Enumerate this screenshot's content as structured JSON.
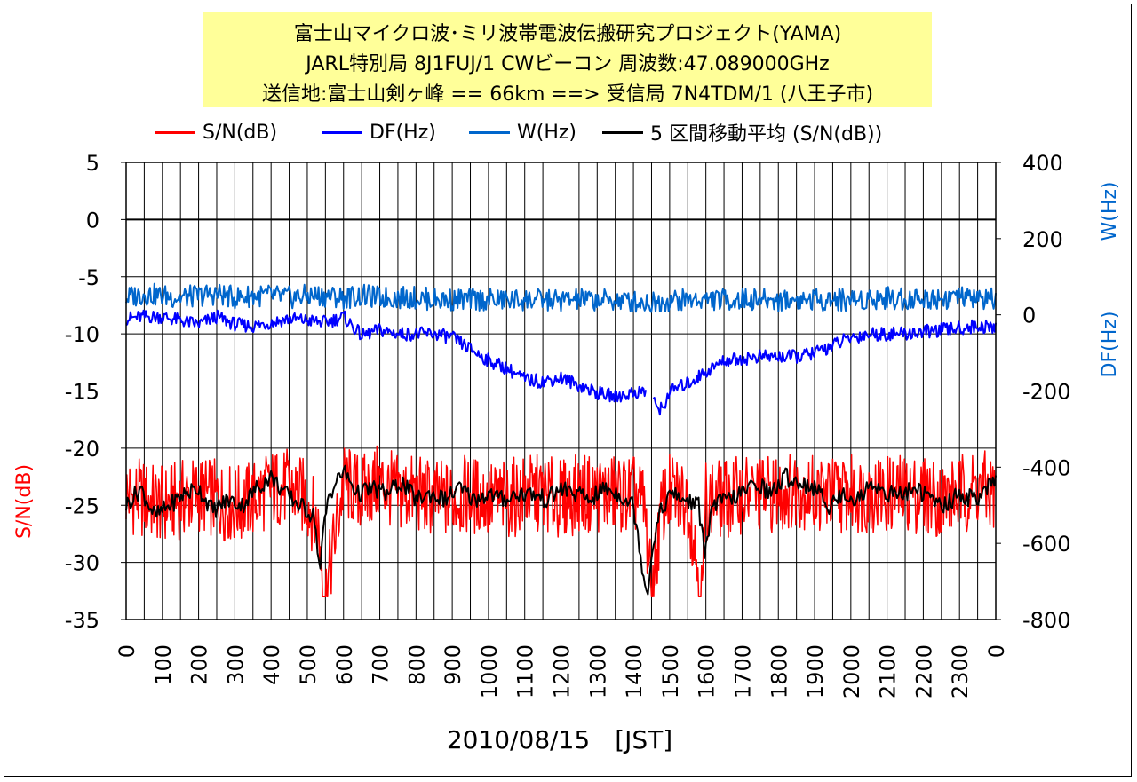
{
  "title_lines": [
    "富士山マイクロ波･ミリ波帯電波伝搬研究プロジェクト(YAMA)",
    "JARL特別局 8J1FUJ/1 CWビーコン 周波数:47.089000GHz",
    "送信地:富士山剣ヶ峰  == 66km ==> 受信局 7N4TDM/1 (八王子市)"
  ],
  "colors": {
    "sn": "#ff0000",
    "df": "#0000ff",
    "w": "#0066cc",
    "ma": "#000000",
    "title_bg": "#ffff99"
  },
  "chart_data": {
    "type": "line",
    "xlabel": "2010/08/15　[JST]",
    "x_ticks": [
      "0",
      "100",
      "200",
      "300",
      "400",
      "500",
      "600",
      "700",
      "800",
      "900",
      "1000",
      "1100",
      "1200",
      "1300",
      "1400",
      "1500",
      "1600",
      "1700",
      "1800",
      "1900",
      "2000",
      "2100",
      "2200",
      "2300",
      "0"
    ],
    "y_left": {
      "label": "S/N(dB)",
      "ylim": [
        -35,
        5
      ],
      "ticks": [
        "5",
        "0",
        "-5",
        "-10",
        "-15",
        "-20",
        "-25",
        "-30",
        "-35"
      ]
    },
    "y_right": {
      "label_w": "W(Hz)",
      "label_df": "DF(Hz)",
      "ylim": [
        -800,
        400
      ],
      "ticks": [
        "400",
        "200",
        "0",
        "-200",
        "-400",
        "-600",
        "-800"
      ]
    },
    "grid": true,
    "legend_position": "top",
    "series": [
      {
        "name": "S/N(dB)",
        "axis": "left",
        "x": [
          0,
          50,
          100,
          150,
          200,
          250,
          300,
          350,
          400,
          450,
          500,
          530,
          550,
          600,
          650,
          700,
          750,
          800,
          850,
          900,
          950,
          1000,
          1050,
          1100,
          1150,
          1200,
          1250,
          1300,
          1350,
          1400,
          1430,
          1450,
          1480,
          1500,
          1550,
          1590,
          1600,
          1650,
          1700,
          1750,
          1800,
          1850,
          1900,
          1950,
          2000,
          2050,
          2100,
          2150,
          2200,
          2250,
          2300,
          2350,
          2400
        ],
        "values": [
          -24,
          -24.5,
          -25,
          -24.5,
          -24,
          -24.5,
          -25,
          -24.5,
          -23.5,
          -23.5,
          -24.5,
          -27,
          -33,
          -23,
          -24,
          -23,
          -24,
          -24,
          -24.5,
          -24.5,
          -24,
          -24.5,
          -24.5,
          -24,
          -24,
          -24.5,
          -24,
          -24,
          -24,
          -24,
          -25,
          -33,
          -25,
          -24,
          -24.5,
          -33,
          -24.5,
          -24.5,
          -24,
          -24,
          -24,
          -23.5,
          -24,
          -24,
          -24,
          -24,
          -24,
          -24,
          -24,
          -24.5,
          -24,
          -23.5,
          -24
        ]
      },
      {
        "name": "DF(Hz)",
        "axis": "right",
        "x": [
          0,
          50,
          100,
          150,
          200,
          250,
          300,
          350,
          400,
          450,
          500,
          550,
          600,
          650,
          700,
          750,
          800,
          850,
          900,
          950,
          1000,
          1050,
          1100,
          1150,
          1200,
          1250,
          1300,
          1350,
          1400,
          1430,
          1460,
          1480,
          1500,
          1550,
          1600,
          1650,
          1700,
          1750,
          1800,
          1850,
          1900,
          1950,
          2000,
          2050,
          2100,
          2150,
          2200,
          2250,
          2300,
          2350,
          2400
        ],
        "values": [
          -10,
          -5,
          -5,
          -15,
          -25,
          -5,
          -25,
          -30,
          -20,
          -10,
          -15,
          -20,
          -5,
          -55,
          -40,
          -50,
          -50,
          -50,
          -60,
          -90,
          -120,
          -140,
          -170,
          -175,
          -165,
          -185,
          -205,
          -215,
          -205,
          -200,
          -235,
          -250,
          -200,
          -180,
          -150,
          -120,
          -115,
          -110,
          -110,
          -110,
          -100,
          -80,
          -60,
          -50,
          -50,
          -50,
          -45,
          -40,
          -35,
          -30,
          -35
        ]
      },
      {
        "name": "W(Hz)",
        "axis": "right",
        "x": [
          0,
          50,
          100,
          150,
          200,
          250,
          300,
          350,
          400,
          450,
          500,
          550,
          600,
          650,
          700,
          750,
          800,
          850,
          900,
          950,
          1000,
          1050,
          1100,
          1150,
          1200,
          1250,
          1300,
          1350,
          1400,
          1450,
          1500,
          1550,
          1600,
          1650,
          1700,
          1750,
          1800,
          1850,
          1900,
          1950,
          2000,
          2050,
          2100,
          2150,
          2200,
          2250,
          2300,
          2350,
          2400
        ],
        "values": [
          45,
          55,
          50,
          45,
          50,
          55,
          45,
          50,
          50,
          45,
          50,
          50,
          45,
          50,
          45,
          45,
          45,
          40,
          40,
          40,
          40,
          38,
          40,
          38,
          38,
          40,
          38,
          38,
          35,
          32,
          38,
          40,
          40,
          40,
          40,
          40,
          38,
          40,
          40,
          40,
          40,
          42,
          45,
          42,
          42,
          45,
          45,
          42,
          40
        ]
      },
      {
        "name": "5 区間移動平均 (S/N(dB))",
        "axis": "left",
        "x": [
          0,
          40,
          80,
          120,
          160,
          200,
          240,
          280,
          320,
          360,
          400,
          440,
          480,
          520,
          535,
          545,
          560,
          600,
          640,
          680,
          720,
          760,
          800,
          840,
          880,
          920,
          960,
          1000,
          1040,
          1080,
          1120,
          1160,
          1200,
          1240,
          1280,
          1320,
          1360,
          1400,
          1430,
          1440,
          1455,
          1470,
          1500,
          1540,
          1580,
          1595,
          1620,
          1660,
          1700,
          1740,
          1780,
          1820,
          1860,
          1900,
          1940,
          1980,
          2020,
          2060,
          2100,
          2140,
          2180,
          2220,
          2260,
          2300,
          2340,
          2380,
          2400
        ],
        "values": [
          -25,
          -23.5,
          -26,
          -25,
          -24,
          -23.5,
          -25.5,
          -24.5,
          -25,
          -23.5,
          -22.5,
          -24,
          -25,
          -26,
          -31,
          -27,
          -24,
          -22,
          -24,
          -23.5,
          -24,
          -23,
          -24.5,
          -24,
          -24.5,
          -23.5,
          -24.5,
          -24,
          -24.5,
          -24,
          -24,
          -24.5,
          -23.5,
          -24,
          -24.5,
          -23.5,
          -24,
          -25,
          -31.5,
          -32.5,
          -28,
          -26,
          -24,
          -24.5,
          -25,
          -29,
          -25,
          -24.5,
          -24,
          -23,
          -24,
          -22.5,
          -23,
          -23.5,
          -25,
          -24,
          -24.5,
          -23,
          -24,
          -24,
          -23.5,
          -24.5,
          -25,
          -24,
          -24.5,
          -23.5,
          -23
        ]
      }
    ]
  }
}
